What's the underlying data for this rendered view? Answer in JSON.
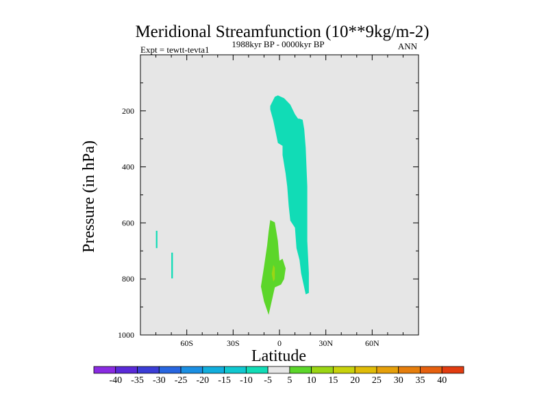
{
  "chart_data": {
    "type": "contour",
    "title": "Meridional Streamfunction (10**9kg/m-2)",
    "subtitle_left": "Expt = tewtt-tevta1",
    "subtitle_center": "1988kyr BP - 0000kyr BP",
    "subtitle_right": "ANN",
    "xlabel": "Latitude",
    "ylabel": "Pressure (in hPa)",
    "xlim": [
      -90,
      90
    ],
    "ylim": [
      0,
      1000
    ],
    "y_inverted": true,
    "x_ticks": [
      {
        "value": -60,
        "label": "60S"
      },
      {
        "value": -30,
        "label": "30S"
      },
      {
        "value": 0,
        "label": "0"
      },
      {
        "value": 30,
        "label": "30N"
      },
      {
        "value": 60,
        "label": "60N"
      }
    ],
    "y_ticks": [
      {
        "value": 200,
        "label": "200"
      },
      {
        "value": 400,
        "label": "400"
      },
      {
        "value": 600,
        "label": "600"
      },
      {
        "value": 800,
        "label": "800"
      },
      {
        "value": 1000,
        "label": "1000"
      }
    ],
    "background_color": "#e6e6e6",
    "contour_levels": [
      -40,
      -35,
      -30,
      -25,
      -20,
      -15,
      -10,
      -5,
      5,
      10,
      15,
      20,
      25,
      30,
      35,
      40
    ],
    "colorbar_colors": [
      "#8a2be2",
      "#5a2ad8",
      "#3b3dd6",
      "#2866e0",
      "#1b8fe3",
      "#12aedd",
      "#10c8d0",
      "#11dcb6",
      "#e6e6e6",
      "#5cd62a",
      "#9bd614",
      "#c8d20c",
      "#e0bc08",
      "#e6a00a",
      "#e67e0c",
      "#e6600e",
      "#e23c10"
    ],
    "regions": [
      {
        "name": "upper-negative-cell",
        "value_range": [
          -10,
          -5
        ],
        "color": "#11dcb6",
        "points": [
          [
            -6,
            183
          ],
          [
            -3,
            150
          ],
          [
            -1,
            145
          ],
          [
            3,
            155
          ],
          [
            7,
            178
          ],
          [
            10,
            212
          ],
          [
            12,
            228
          ],
          [
            13,
            228
          ],
          [
            15,
            232
          ],
          [
            16,
            265
          ],
          [
            17,
            332
          ],
          [
            18,
            470
          ],
          [
            18,
            562
          ],
          [
            18,
            665
          ],
          [
            19,
            778
          ],
          [
            19,
            850
          ],
          [
            17,
            855
          ],
          [
            14,
            780
          ],
          [
            13,
            733
          ],
          [
            11,
            690
          ],
          [
            10,
            617
          ],
          [
            7,
            592
          ],
          [
            6,
            540
          ],
          [
            5,
            470
          ],
          [
            4,
            425
          ],
          [
            2,
            358
          ],
          [
            2,
            325
          ],
          [
            -1,
            315
          ],
          [
            -4,
            235
          ],
          [
            -6,
            195
          ]
        ]
      },
      {
        "name": "lower-positive-cell",
        "value_range": [
          5,
          10
        ],
        "color": "#5cd62a",
        "points": [
          [
            -6,
            590
          ],
          [
            -3,
            598
          ],
          [
            -1,
            665
          ],
          [
            0,
            735
          ],
          [
            2,
            728
          ],
          [
            4,
            762
          ],
          [
            3,
            800
          ],
          [
            1,
            820
          ],
          [
            -3,
            830
          ],
          [
            -7,
            928
          ],
          [
            -10,
            880
          ],
          [
            -12,
            827
          ],
          [
            -10,
            757
          ],
          [
            -8,
            680
          ],
          [
            -7,
            630
          ]
        ]
      },
      {
        "name": "lower-positive-core",
        "value_range": [
          10,
          15
        ],
        "color": "#9bd614",
        "points": [
          [
            -4,
            750
          ],
          [
            -3,
            760
          ],
          [
            -3,
            800
          ],
          [
            -4,
            810
          ],
          [
            -5,
            782
          ]
        ]
      },
      {
        "name": "sliver-negative-1",
        "value_range": [
          -10,
          -5
        ],
        "color": "#11dcb6",
        "points": [
          [
            -80,
            628
          ],
          [
            -79,
            628
          ],
          [
            -79,
            690
          ],
          [
            -80,
            690
          ]
        ]
      },
      {
        "name": "sliver-negative-2",
        "value_range": [
          -10,
          -5
        ],
        "color": "#11dcb6",
        "points": [
          [
            -70,
            706
          ],
          [
            -69,
            706
          ],
          [
            -69,
            798
          ],
          [
            -70,
            798
          ]
        ]
      }
    ]
  }
}
